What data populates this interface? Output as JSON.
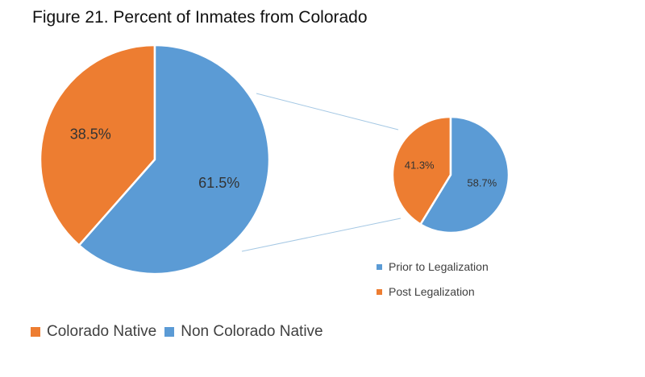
{
  "title": "Figure 21. Percent of Inmates from Colorado",
  "colors": {
    "orange": "#ED7D31",
    "blue": "#5B9BD5"
  },
  "chart_data": [
    {
      "type": "pie",
      "slices": [
        {
          "label": "Colorado Native",
          "value": 38.5,
          "display": "38.5%",
          "color": "#ED7D31"
        },
        {
          "label": "Non Colorado Native",
          "value": 61.5,
          "display": "61.5%",
          "color": "#5B9BD5"
        }
      ],
      "legend": [
        "Colorado Native",
        "Non Colorado Native"
      ],
      "legend_position": "bottom-left"
    },
    {
      "type": "pie",
      "slices": [
        {
          "label": "Post Legalization",
          "value": 41.3,
          "display": "41.3%",
          "color": "#ED7D31"
        },
        {
          "label": "Prior to Legalization",
          "value": 58.7,
          "display": "58.7%",
          "color": "#5B9BD5"
        }
      ],
      "legend": [
        "Prior to Legalization",
        "Post Legalization"
      ],
      "legend_position": "bottom-right"
    }
  ]
}
